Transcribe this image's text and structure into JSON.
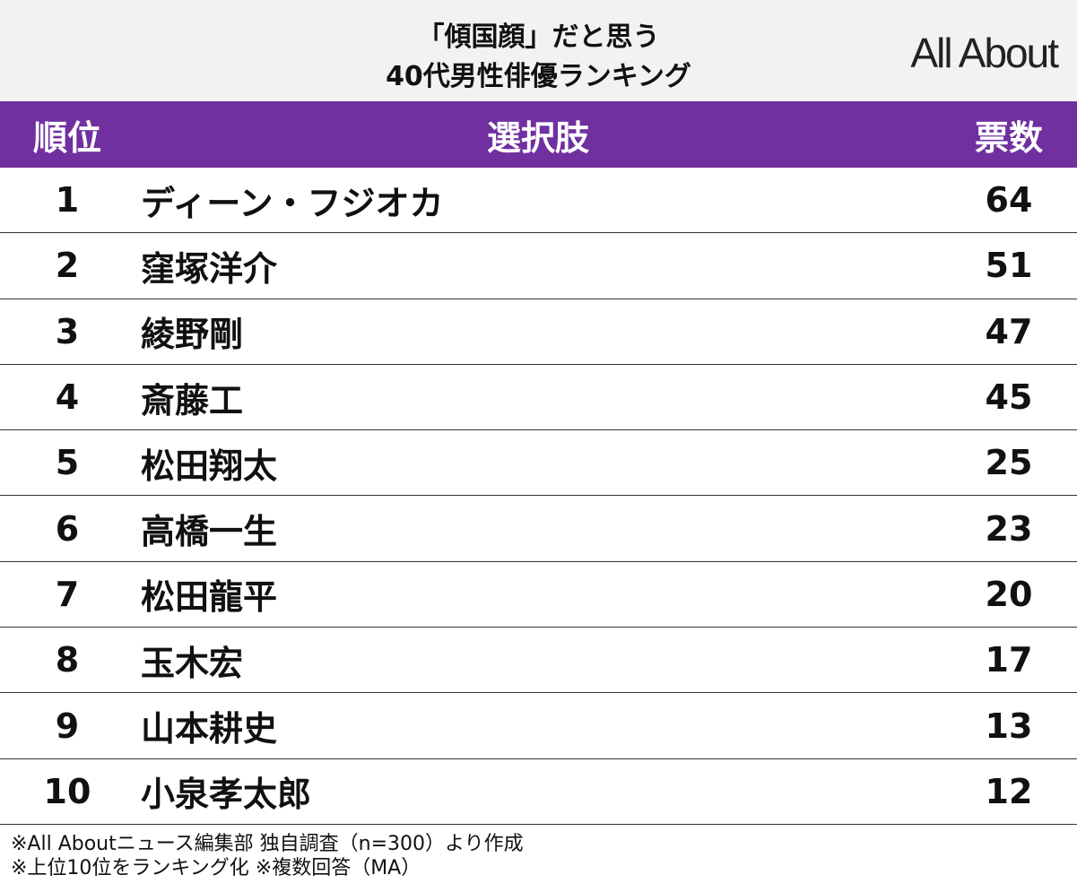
{
  "header": {
    "title": [
      "「傾国顔」だと思う",
      "40代男性俳優ランキング"
    ],
    "logo": "All About"
  },
  "table": {
    "columns": [
      "順位",
      "選択肢",
      "票数"
    ],
    "rows": [
      [
        1,
        "ディーン・フジオカ",
        64
      ],
      [
        2,
        "窪塚洋介",
        51
      ],
      [
        3,
        "綾野剛",
        47
      ],
      [
        4,
        "斎藤工",
        45
      ],
      [
        5,
        "松田翔太",
        25
      ],
      [
        6,
        "高橋一生",
        23
      ],
      [
        7,
        "松田龍平",
        20
      ],
      [
        8,
        "玉木宏",
        17
      ],
      [
        9,
        "山本耕史",
        13
      ],
      [
        10,
        "小泉孝太郎",
        12
      ]
    ]
  },
  "footer": [
    "※All Aboutニュース編集部 独自調査（n=300）より作成",
    "※上位10位をランキング化 ※複数回答（MA）"
  ]
}
